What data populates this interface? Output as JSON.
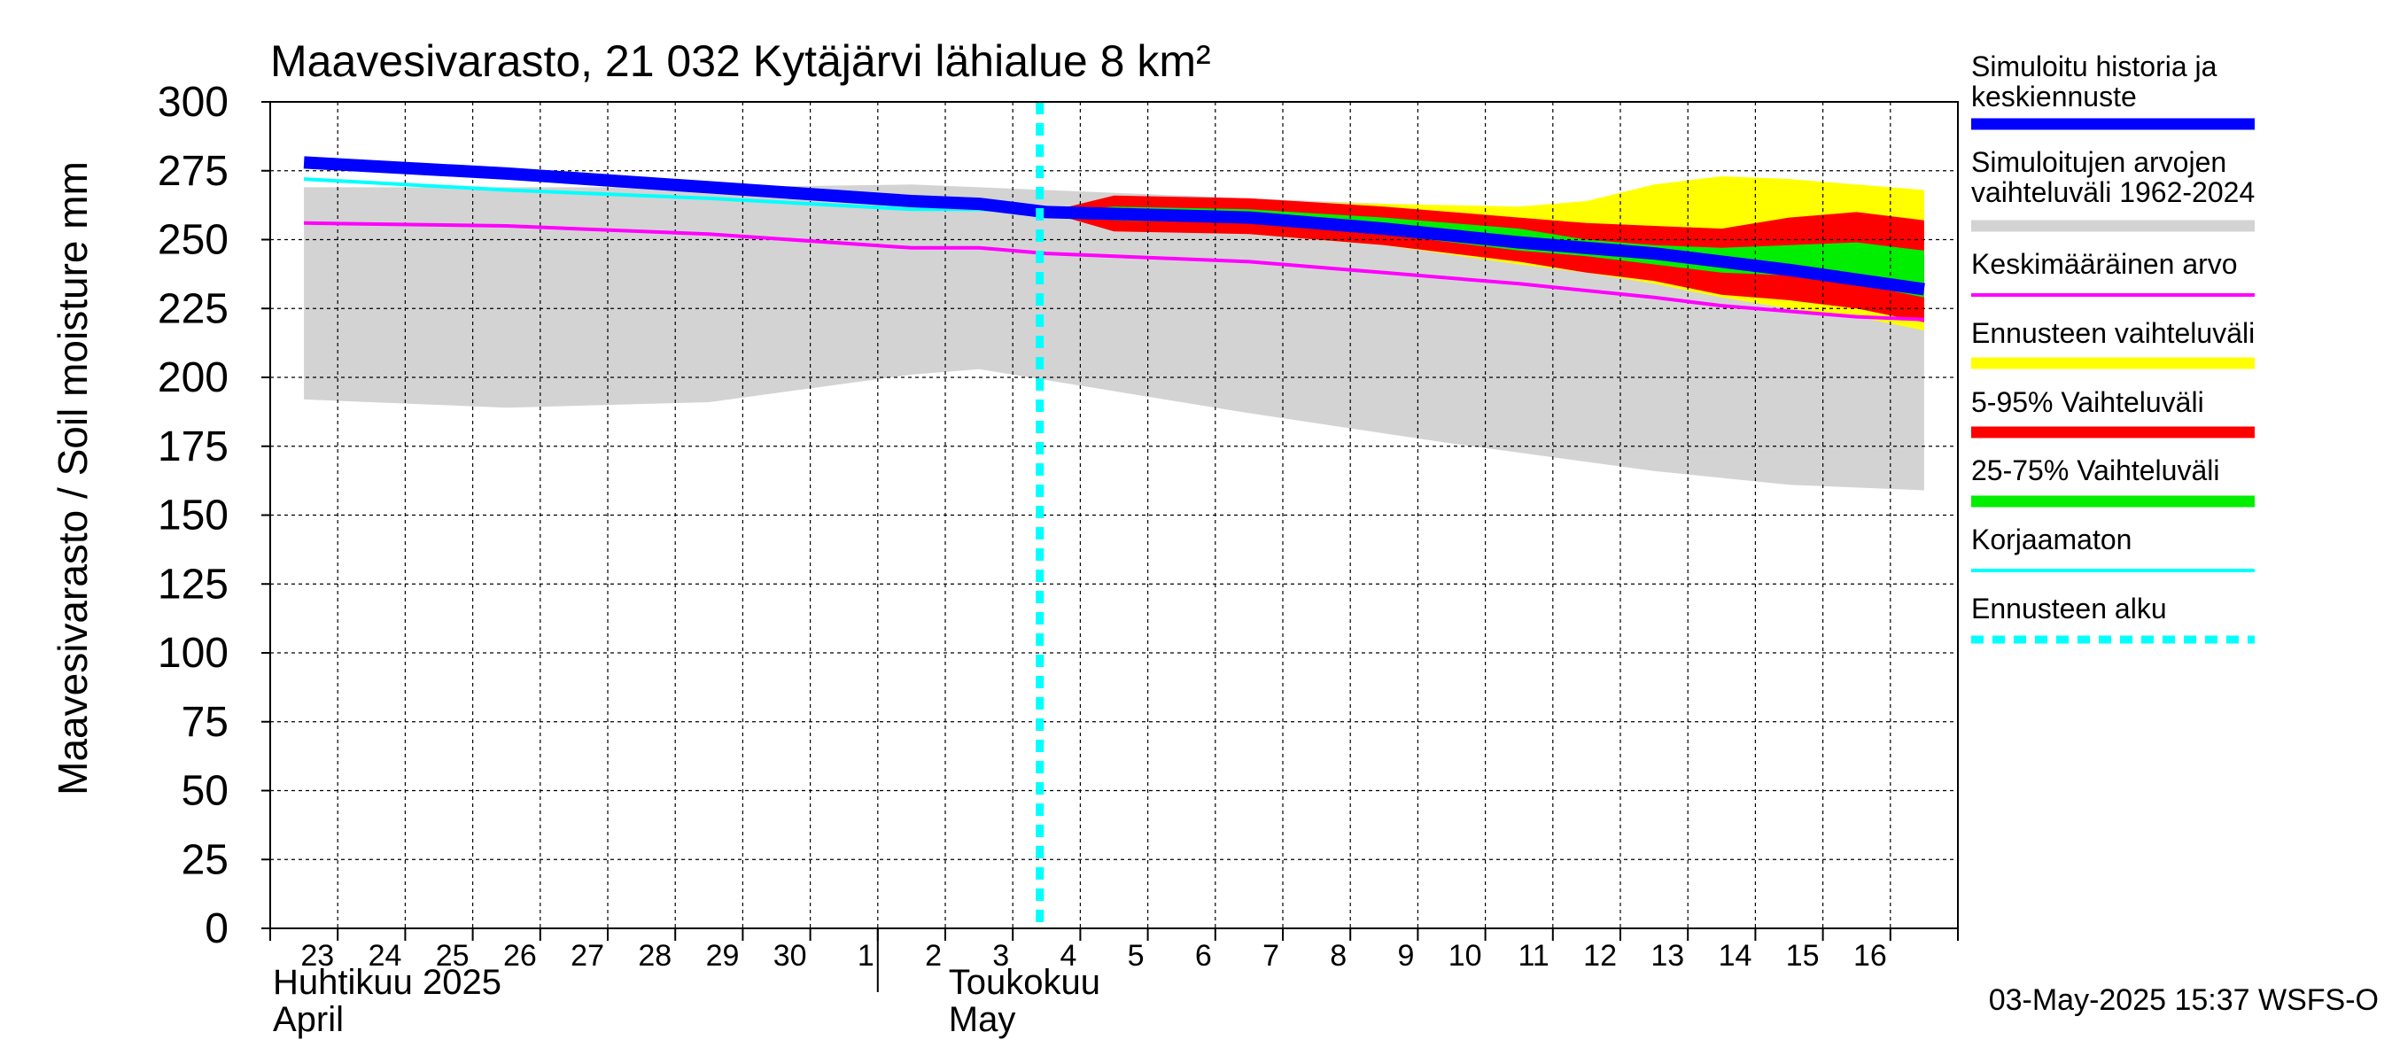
{
  "chart_data": {
    "type": "area",
    "title": "Maavesivarasto, 21 032 Kytäjärvi lähialue 8 km²",
    "ylabel": "Maavesivarasto / Soil moisture   mm",
    "ylim": [
      0,
      300
    ],
    "yticks": [
      0,
      25,
      50,
      75,
      100,
      125,
      150,
      175,
      200,
      225,
      250,
      275,
      300
    ],
    "x_start": "2025-04-22",
    "x_end": "2025-05-16",
    "day_labels": [
      "23",
      "24",
      "25",
      "26",
      "27",
      "28",
      "29",
      "30",
      "1",
      "2",
      "3",
      "4",
      "5",
      "6",
      "7",
      "8",
      "9",
      "10",
      "11",
      "12",
      "13",
      "14",
      "15",
      "16"
    ],
    "month_labels": [
      {
        "fi": "Huhtikuu  2025",
        "en": "April",
        "date": "2025-04-22"
      },
      {
        "fi": "Toukokuu",
        "en": "May",
        "date": "2025-05-01"
      }
    ],
    "forecast_start": "2025-05-03",
    "footer": "03-May-2025 15:37 WSFS-O",
    "series": [
      {
        "name": "Simuloitujen arvojen vaihteluväli 1962-2024",
        "kind": "band",
        "color": "#d3d3d3",
        "x": [
          "2025-04-22",
          "2025-04-25",
          "2025-04-28",
          "2025-05-01",
          "2025-05-02",
          "2025-05-03",
          "2025-05-06",
          "2025-05-09",
          "2025-05-12",
          "2025-05-14",
          "2025-05-16"
        ],
        "upper": [
          269,
          269,
          269,
          270,
          269,
          268,
          265,
          262,
          257,
          255,
          253
        ],
        "lower": [
          192,
          189,
          191,
          201,
          203,
          199,
          187,
          176,
          166,
          161,
          159
        ]
      },
      {
        "name": "Ennusteen vaihteluväli",
        "kind": "band",
        "color": "#ffff00",
        "x": [
          "2025-05-03",
          "2025-05-04",
          "2025-05-06",
          "2025-05-08",
          "2025-05-10",
          "2025-05-11",
          "2025-05-12",
          "2025-05-13",
          "2025-05-14",
          "2025-05-15",
          "2025-05-16"
        ],
        "upper": [
          260,
          265,
          264,
          263,
          262,
          264,
          270,
          273,
          272,
          270,
          268
        ],
        "lower": [
          260,
          254,
          252,
          248,
          241,
          238,
          234,
          229,
          225,
          222,
          217
        ]
      },
      {
        "name": "5-95% Vaihteluväli",
        "kind": "band",
        "color": "#ff0000",
        "x": [
          "2025-05-03",
          "2025-05-04",
          "2025-05-06",
          "2025-05-08",
          "2025-05-10",
          "2025-05-11",
          "2025-05-12",
          "2025-05-13",
          "2025-05-14",
          "2025-05-15",
          "2025-05-16"
        ],
        "upper": [
          260,
          266,
          265,
          262,
          258,
          256,
          255,
          254,
          258,
          260,
          257
        ],
        "lower": [
          260,
          253,
          252,
          248,
          242,
          238,
          235,
          230,
          228,
          225,
          220
        ]
      },
      {
        "name": "25-75% Vaihteluväli",
        "kind": "band",
        "color": "#00ee00",
        "x": [
          "2025-05-03",
          "2025-05-04",
          "2025-05-06",
          "2025-05-08",
          "2025-05-10",
          "2025-05-11",
          "2025-05-12",
          "2025-05-13",
          "2025-05-14",
          "2025-05-15",
          "2025-05-16"
        ],
        "upper": [
          260,
          262,
          261,
          258,
          254,
          250,
          248,
          247,
          248,
          249,
          246
        ],
        "lower": [
          260,
          257,
          256,
          252,
          246,
          244,
          241,
          238,
          237,
          234,
          229
        ]
      },
      {
        "name": "Keskimääräinen arvo",
        "kind": "line",
        "color": "#ff00ff",
        "x": [
          "2025-04-22",
          "2025-04-25",
          "2025-04-28",
          "2025-05-01",
          "2025-05-02",
          "2025-05-03",
          "2025-05-06",
          "2025-05-08",
          "2025-05-10",
          "2025-05-12",
          "2025-05-13",
          "2025-05-14",
          "2025-05-15",
          "2025-05-16"
        ],
        "y": [
          256,
          255,
          252,
          247,
          247,
          245,
          242,
          238,
          234,
          229,
          226,
          224,
          222,
          221
        ]
      },
      {
        "name": "Korjaamaton",
        "kind": "line",
        "color": "#00ffff",
        "x": [
          "2025-04-22",
          "2025-04-25",
          "2025-04-28",
          "2025-05-01",
          "2025-05-02",
          "2025-05-03"
        ],
        "y": [
          272,
          268,
          265,
          261,
          261,
          260
        ]
      },
      {
        "name": "Simuloitu historia ja keskiennuste",
        "kind": "line",
        "color": "#0000ff",
        "x": [
          "2025-04-22",
          "2025-04-25",
          "2025-04-28",
          "2025-05-01",
          "2025-05-02",
          "2025-05-03",
          "2025-05-06",
          "2025-05-08",
          "2025-05-10",
          "2025-05-12",
          "2025-05-14",
          "2025-05-16"
        ],
        "y": [
          278,
          274,
          269,
          264,
          263,
          260,
          258,
          254,
          249,
          245,
          239,
          232
        ]
      }
    ],
    "legend": [
      {
        "label": "Simuloitu historia ja keskiennuste",
        "color": "#0000ff",
        "style": "thick"
      },
      {
        "label": "Simuloitujen arvojen vaihteluväli 1962-2024",
        "color": "#d3d3d3",
        "style": "thick"
      },
      {
        "label": "Keskimääräinen arvo",
        "color": "#ff00ff",
        "style": "thin"
      },
      {
        "label": "Ennusteen vaihteluväli",
        "color": "#ffff00",
        "style": "thick"
      },
      {
        "label": "5-95% Vaihteluväli",
        "color": "#ff0000",
        "style": "thick"
      },
      {
        "label": "25-75% Vaihteluväli",
        "color": "#00ee00",
        "style": "thick"
      },
      {
        "label": "Korjaamaton",
        "color": "#00ffff",
        "style": "thin"
      },
      {
        "label": "Ennusteen alku",
        "color": "#00ffff",
        "style": "dashed"
      }
    ]
  }
}
